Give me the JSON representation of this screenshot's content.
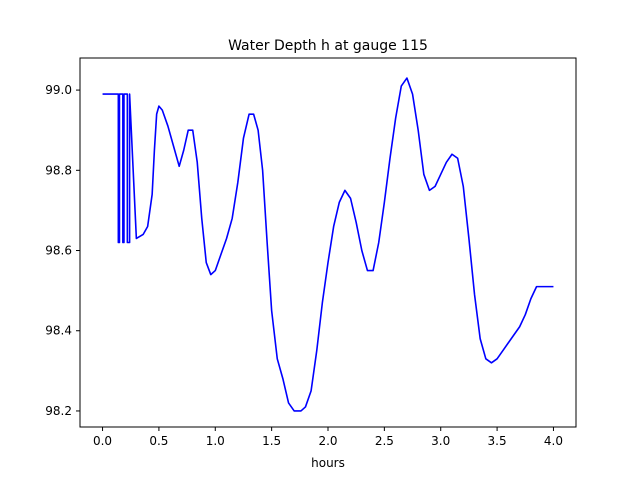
{
  "chart_data": {
    "type": "line",
    "title": "Water Depth h at gauge 115",
    "xlabel": "hours",
    "ylabel": "",
    "xlim": [
      -0.2,
      4.2
    ],
    "ylim": [
      98.16,
      99.08
    ],
    "xticks": [
      0.0,
      0.5,
      1.0,
      1.5,
      2.0,
      2.5,
      3.0,
      3.5,
      4.0
    ],
    "xtick_labels": [
      "0.0",
      "0.5",
      "1.0",
      "1.5",
      "2.0",
      "2.5",
      "3.0",
      "3.5",
      "4.0"
    ],
    "yticks": [
      98.2,
      98.4,
      98.6,
      98.8,
      99.0
    ],
    "ytick_labels": [
      "98.2",
      "98.4",
      "98.6",
      "98.8",
      "99.0"
    ],
    "grid": false,
    "legend": null,
    "series": [
      {
        "color": "#0000ff",
        "x": [
          0.0,
          0.14,
          0.14,
          0.15,
          0.15,
          0.18,
          0.18,
          0.19,
          0.19,
          0.22,
          0.22,
          0.24,
          0.24,
          0.3,
          0.36,
          0.4,
          0.44,
          0.46,
          0.48,
          0.5,
          0.53,
          0.58,
          0.63,
          0.68,
          0.72,
          0.76,
          0.8,
          0.84,
          0.88,
          0.92,
          0.96,
          1.0,
          1.05,
          1.1,
          1.15,
          1.2,
          1.25,
          1.3,
          1.34,
          1.38,
          1.42,
          1.46,
          1.5,
          1.55,
          1.6,
          1.65,
          1.7,
          1.73,
          1.76,
          1.8,
          1.85,
          1.9,
          1.95,
          2.0,
          2.05,
          2.1,
          2.15,
          2.2,
          2.25,
          2.3,
          2.35,
          2.4,
          2.45,
          2.5,
          2.55,
          2.6,
          2.65,
          2.7,
          2.75,
          2.8,
          2.85,
          2.9,
          2.95,
          3.0,
          3.05,
          3.1,
          3.15,
          3.2,
          3.25,
          3.3,
          3.35,
          3.4,
          3.45,
          3.5,
          3.55,
          3.6,
          3.65,
          3.7,
          3.75,
          3.8,
          3.85,
          3.9,
          3.95,
          4.0
        ],
        "y": [
          98.99,
          98.99,
          98.62,
          98.62,
          98.99,
          98.99,
          98.62,
          98.62,
          98.99,
          98.99,
          98.62,
          98.62,
          98.99,
          98.63,
          98.64,
          98.66,
          98.74,
          98.85,
          98.94,
          98.96,
          98.95,
          98.91,
          98.86,
          98.81,
          98.85,
          98.9,
          98.9,
          98.82,
          98.68,
          98.57,
          98.54,
          98.55,
          98.59,
          98.63,
          98.68,
          98.77,
          98.88,
          98.94,
          98.94,
          98.9,
          98.8,
          98.62,
          98.45,
          98.33,
          98.28,
          98.22,
          98.2,
          98.2,
          98.2,
          98.21,
          98.25,
          98.35,
          98.47,
          98.57,
          98.66,
          98.72,
          98.75,
          98.73,
          98.67,
          98.6,
          98.55,
          98.55,
          98.62,
          98.72,
          98.83,
          98.93,
          99.01,
          99.03,
          98.99,
          98.9,
          98.79,
          98.75,
          98.76,
          98.79,
          98.82,
          98.84,
          98.83,
          98.76,
          98.63,
          98.49,
          98.38,
          98.33,
          98.32,
          98.33,
          98.35,
          98.37,
          98.39,
          98.41,
          98.44,
          98.48,
          98.51,
          98.51,
          98.51,
          98.51
        ]
      }
    ]
  }
}
